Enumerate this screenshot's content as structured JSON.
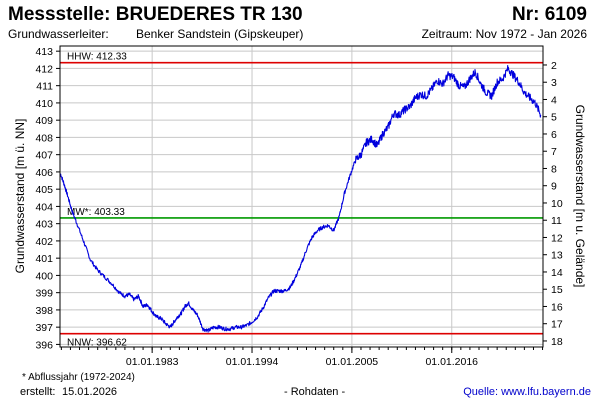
{
  "header": {
    "title": "Messstelle: BRUEDERES TR 130",
    "number": "Nr: 6109",
    "aquifer_label": "Grundwasserleiter:",
    "aquifer_value": "Benker Sandstein (Gipskeuper)",
    "period": "Zeitraum: Nov 1972 - Jan 2026"
  },
  "footer": {
    "footnote": "* Abflussjahr (1972-2024)",
    "created_label": "erstellt:",
    "created_value": "15.01.2026",
    "rawdata": "- Rohdaten -",
    "source": "Quelle: www.lfu.bayern.de"
  },
  "colors": {
    "series": "#0000dd",
    "hhw": "#dd0000",
    "mw": "#009900",
    "nnw": "#dd0000",
    "grid": "#c8c8c8",
    "frame": "#000000"
  },
  "chart_data": {
    "type": "line",
    "ylabel": "Grundwasserstand [m ü. NN]",
    "ylabel_right": "Grundwasserstand [m u. Gelände]",
    "xlim": [
      1972.85,
      2026.05
    ],
    "ylim": [
      395.85,
      413.3
    ],
    "yticks": [
      396,
      397,
      398,
      399,
      400,
      401,
      402,
      403,
      404,
      405,
      406,
      407,
      408,
      409,
      410,
      411,
      412,
      413
    ],
    "yticks_right": [
      2,
      3,
      4,
      5,
      6,
      7,
      8,
      9,
      10,
      11,
      12,
      13,
      14,
      15,
      16,
      17,
      18
    ],
    "right_axis_offset": 414.2,
    "xticks": [
      {
        "x": 1983.0,
        "label": "01.01.1983"
      },
      {
        "x": 1994.0,
        "label": "01.01.1994"
      },
      {
        "x": 2005.0,
        "label": "01.01.2005"
      },
      {
        "x": 2016.0,
        "label": "01.01.2016"
      }
    ],
    "x_minor_step": 1,
    "grid": true,
    "reference_lines": [
      {
        "id": "hhw",
        "label": "HHW: 412.33",
        "value": 412.33
      },
      {
        "id": "mw",
        "label": "MW*: 403.33",
        "value": 403.33
      },
      {
        "id": "nnw",
        "label": "NNW: 396.62",
        "value": 396.62
      }
    ],
    "series": [
      {
        "x": [
          1972.9,
          1973.3,
          1973.7,
          1974.2,
          1974.8,
          1975.5,
          1976.2,
          1977.0,
          1977.8,
          1978.6,
          1979.4,
          1980.0,
          1980.5,
          1981.0,
          1981.5,
          1982.0,
          1982.5,
          1983.0,
          1983.5,
          1984.0,
          1984.5,
          1985.0,
          1985.4,
          1985.8,
          1986.2,
          1986.6,
          1987.0,
          1987.5,
          1988.0,
          1988.6,
          1989.2,
          1989.8,
          1990.4,
          1991.0,
          1991.6,
          1992.2,
          1992.8,
          1993.4,
          1994.0,
          1994.6,
          1995.2,
          1995.8,
          1996.4,
          1997.0,
          1997.6,
          1998.2,
          1998.8,
          1999.4,
          2000.0,
          2000.6,
          2001.2,
          2001.8,
          2002.4,
          2003.0,
          2003.6,
          2004.2,
          2004.8,
          2005.4,
          2006.0,
          2006.6,
          2007.2,
          2007.8,
          2008.4,
          2009.0,
          2009.6,
          2010.2,
          2010.8,
          2011.4,
          2012.0,
          2012.6,
          2013.2,
          2013.8,
          2014.4,
          2015.0,
          2015.6,
          2016.2,
          2016.8,
          2017.4,
          2018.0,
          2018.6,
          2019.2,
          2019.8,
          2020.4,
          2021.0,
          2021.6,
          2022.2,
          2022.8,
          2023.4,
          2024.0,
          2024.6,
          2025.2,
          2025.8
        ],
        "y": [
          405.9,
          405.3,
          404.6,
          403.7,
          402.9,
          401.9,
          400.9,
          400.3,
          399.9,
          399.5,
          399.0,
          398.8,
          398.9,
          398.6,
          398.8,
          398.2,
          398.3,
          397.9,
          397.6,
          397.5,
          397.2,
          397.0,
          397.3,
          397.6,
          397.8,
          398.2,
          398.4,
          398.0,
          397.7,
          396.9,
          396.8,
          397.0,
          397.0,
          396.9,
          396.9,
          397.0,
          397.0,
          397.1,
          397.3,
          397.6,
          398.1,
          398.7,
          399.1,
          399.1,
          399.1,
          399.3,
          399.9,
          400.6,
          401.5,
          402.2,
          402.6,
          402.8,
          402.9,
          402.6,
          403.4,
          404.8,
          405.8,
          406.7,
          407.0,
          407.7,
          407.9,
          407.5,
          408.2,
          408.6,
          409.4,
          409.3,
          409.6,
          409.8,
          410.3,
          410.5,
          410.4,
          410.8,
          411.3,
          411.1,
          411.6,
          411.5,
          411.0,
          410.9,
          411.4,
          411.8,
          411.1,
          410.6,
          410.4,
          411.2,
          411.4,
          412.0,
          411.6,
          411.2,
          410.6,
          410.3,
          410.0,
          409.3
        ]
      }
    ]
  }
}
